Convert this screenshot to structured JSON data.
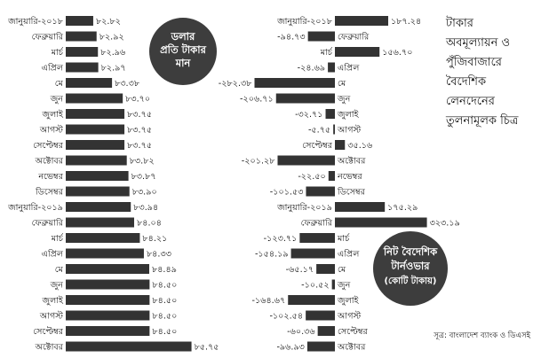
{
  "title": "টাকার অবমূল্যায়ন ও পুঁজিবাজারে বৈদেশিক লেনদেনের তুলনামূলক চিত্র",
  "title_lines": [
    "টাকার",
    "অবমূল্যায়ন ও",
    "পুঁজিবাজারে",
    "বৈদেশিক",
    "লেনদেনের",
    "তুলনামূলক চিত্র"
  ],
  "source": "সূত্র: বাংলাদেশ ব্যাংক ও ডিএসই",
  "colors": {
    "bar": "#333333",
    "badge": "#3d3d3d",
    "text": "#111111",
    "background": "#ffffff"
  },
  "chart_data": [
    {
      "type": "bar",
      "orientation": "horizontal",
      "title": "ডলার প্রতি টাকার মান",
      "title_lines": [
        "ডলার",
        "প্রতি টাকার",
        "মান"
      ],
      "categories": [
        "জানুয়ারি-২০১৮",
        "ফেব্রুয়ারি",
        "মার্চ",
        "এপ্রিল",
        "মে",
        "জুন",
        "জুলাই",
        "আগস্ট",
        "সেপ্টেম্বর",
        "অক্টোবর",
        "নভেম্বর",
        "ডিসেম্বর",
        "জানুয়ারি-২০১৯",
        "ফেব্রুয়ারি",
        "মার্চ",
        "এপ্রিল",
        "মে",
        "জুন",
        "জুলাই",
        "আগস্ট",
        "সেপ্টেম্বর",
        "অক্টোবর"
      ],
      "values": [
        82.82,
        82.92,
        82.96,
        82.97,
        83.38,
        83.7,
        83.75,
        83.75,
        83.75,
        83.82,
        83.87,
        83.9,
        83.94,
        84.04,
        84.21,
        84.33,
        84.49,
        84.5,
        84.5,
        84.5,
        84.5,
        85.75
      ],
      "value_labels": [
        "৮২.৮২",
        "৮২.৯২",
        "৮২.৯৬",
        "৮২.৯৭",
        "৮৩.৩৮",
        "৮৩.৭০",
        "৮৩.৭৫",
        "৮৩.৭৫",
        "৮৩.৭৫",
        "৮৩.৮২",
        "৮৩.৮৭",
        "৮৩.৯০",
        "৮৩.৯৪",
        "৮৪.০৪",
        "৮৪.২১",
        "৮৪.৩৩",
        "৮৪.৪৯",
        "৮৪.৫০",
        "৮৪.৫০",
        "৮৪.৫০",
        "৮৪.৫০",
        "৮৫.৭৫"
      ],
      "xlim": [
        82.0,
        86.0
      ]
    },
    {
      "type": "bar",
      "orientation": "horizontal",
      "title": "নিট বৈদেশিক টার্নওভার (কোটি টাকায়)",
      "title_lines": [
        "নিট বৈদেশিক",
        "টার্নওভার",
        "(কোটি টাকায়)"
      ],
      "categories": [
        "জানুয়ারি-২০১৮",
        "ফেব্রুয়ারি",
        "মার্চ",
        "এপ্রিল",
        "মে",
        "জুন",
        "জুলাই",
        "আগস্ট",
        "সেপ্টেম্বর",
        "অক্টোবর",
        "নভেম্বর",
        "ডিসেম্বর",
        "জানুয়ারি-২০১৯",
        "ফেব্রুয়ারি",
        "মার্চ",
        "এপ্রিল",
        "মে",
        "জুন",
        "জুলাই",
        "আগস্ট",
        "সেপ্টেম্বর",
        "অক্টোবর"
      ],
      "values": [
        187.24,
        -94.73,
        156.7,
        -24.69,
        -282.38,
        -206.71,
        -32.71,
        -5.75,
        35.16,
        -201.28,
        -22.5,
        -101.53,
        175.29,
        323.19,
        -123.71,
        -154.19,
        -65.17,
        -10.52,
        -164.67,
        -102.54,
        -60.36,
        -96.93
      ],
      "value_labels": [
        "১৮৭.২৪",
        "-৯৪.৭৩",
        "১৫৬.৭০",
        "-২৪.৬৯",
        "-২৮২.৩৮",
        "-২০৬.৭১",
        "-৩২.৭১",
        "-৫.৭৫",
        "৩৫.১৬",
        "-২০১.২৮",
        "-২২.৫০",
        "-১০১.৫৩",
        "১৭৫.২৯",
        "৩২৩.১৯",
        "-১২৩.৭১",
        "-১৫৪.১৯",
        "-৬৫.১৭",
        "-১০.৫২",
        "-১৬৪.৬৭",
        "-১০২.৫৪",
        "-৬০.৩৬",
        "-৯৬.৯৩"
      ]
    }
  ]
}
